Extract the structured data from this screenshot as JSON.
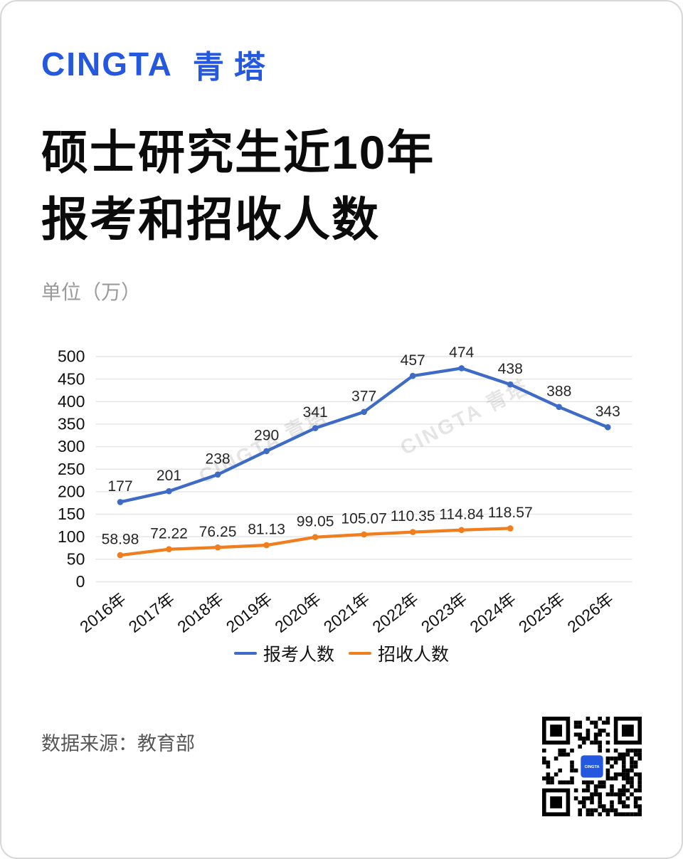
{
  "page": {
    "logo_text": "CINGTA",
    "logo_cn": "青塔",
    "title_line1": "硕士研究生近10年",
    "title_line2": "报考和招收人数",
    "unit_label": "单位（万）",
    "source_label": "数据来源：教育部",
    "watermark": "CINGTA 青塔",
    "qr_center_text": "CINGTA"
  },
  "colors": {
    "brand_blue": "#2458df",
    "series_blue": "#3e6bc5",
    "series_orange": "#f07e1f",
    "grid": "#e7e7e7",
    "axis_text": "#111111",
    "value_label_text": "#262626",
    "watermark_text": "rgba(0,0,0,0.10)"
  },
  "chart_data": {
    "type": "line",
    "categories": [
      "2016年",
      "2017年",
      "2018年",
      "2019年",
      "2020年",
      "2021年",
      "2022年",
      "2023年",
      "2024年",
      "2025年",
      "2026年"
    ],
    "series": [
      {
        "name": "报考人数",
        "color": "#3e6bc5",
        "values": [
          177,
          201,
          238,
          290,
          341,
          377,
          457,
          474,
          438,
          388,
          343
        ]
      },
      {
        "name": "招收人数",
        "color": "#f07e1f",
        "values": [
          58.98,
          72.22,
          76.25,
          81.13,
          99.05,
          105.07,
          110.35,
          114.84,
          118.57
        ]
      }
    ],
    "title": "硕士研究生近10年报考和招收人数",
    "xlabel": "",
    "ylabel": "单位（万）",
    "ylim": [
      0,
      500
    ],
    "ytick_step": 50,
    "grid": true,
    "legend_position": "bottom"
  }
}
